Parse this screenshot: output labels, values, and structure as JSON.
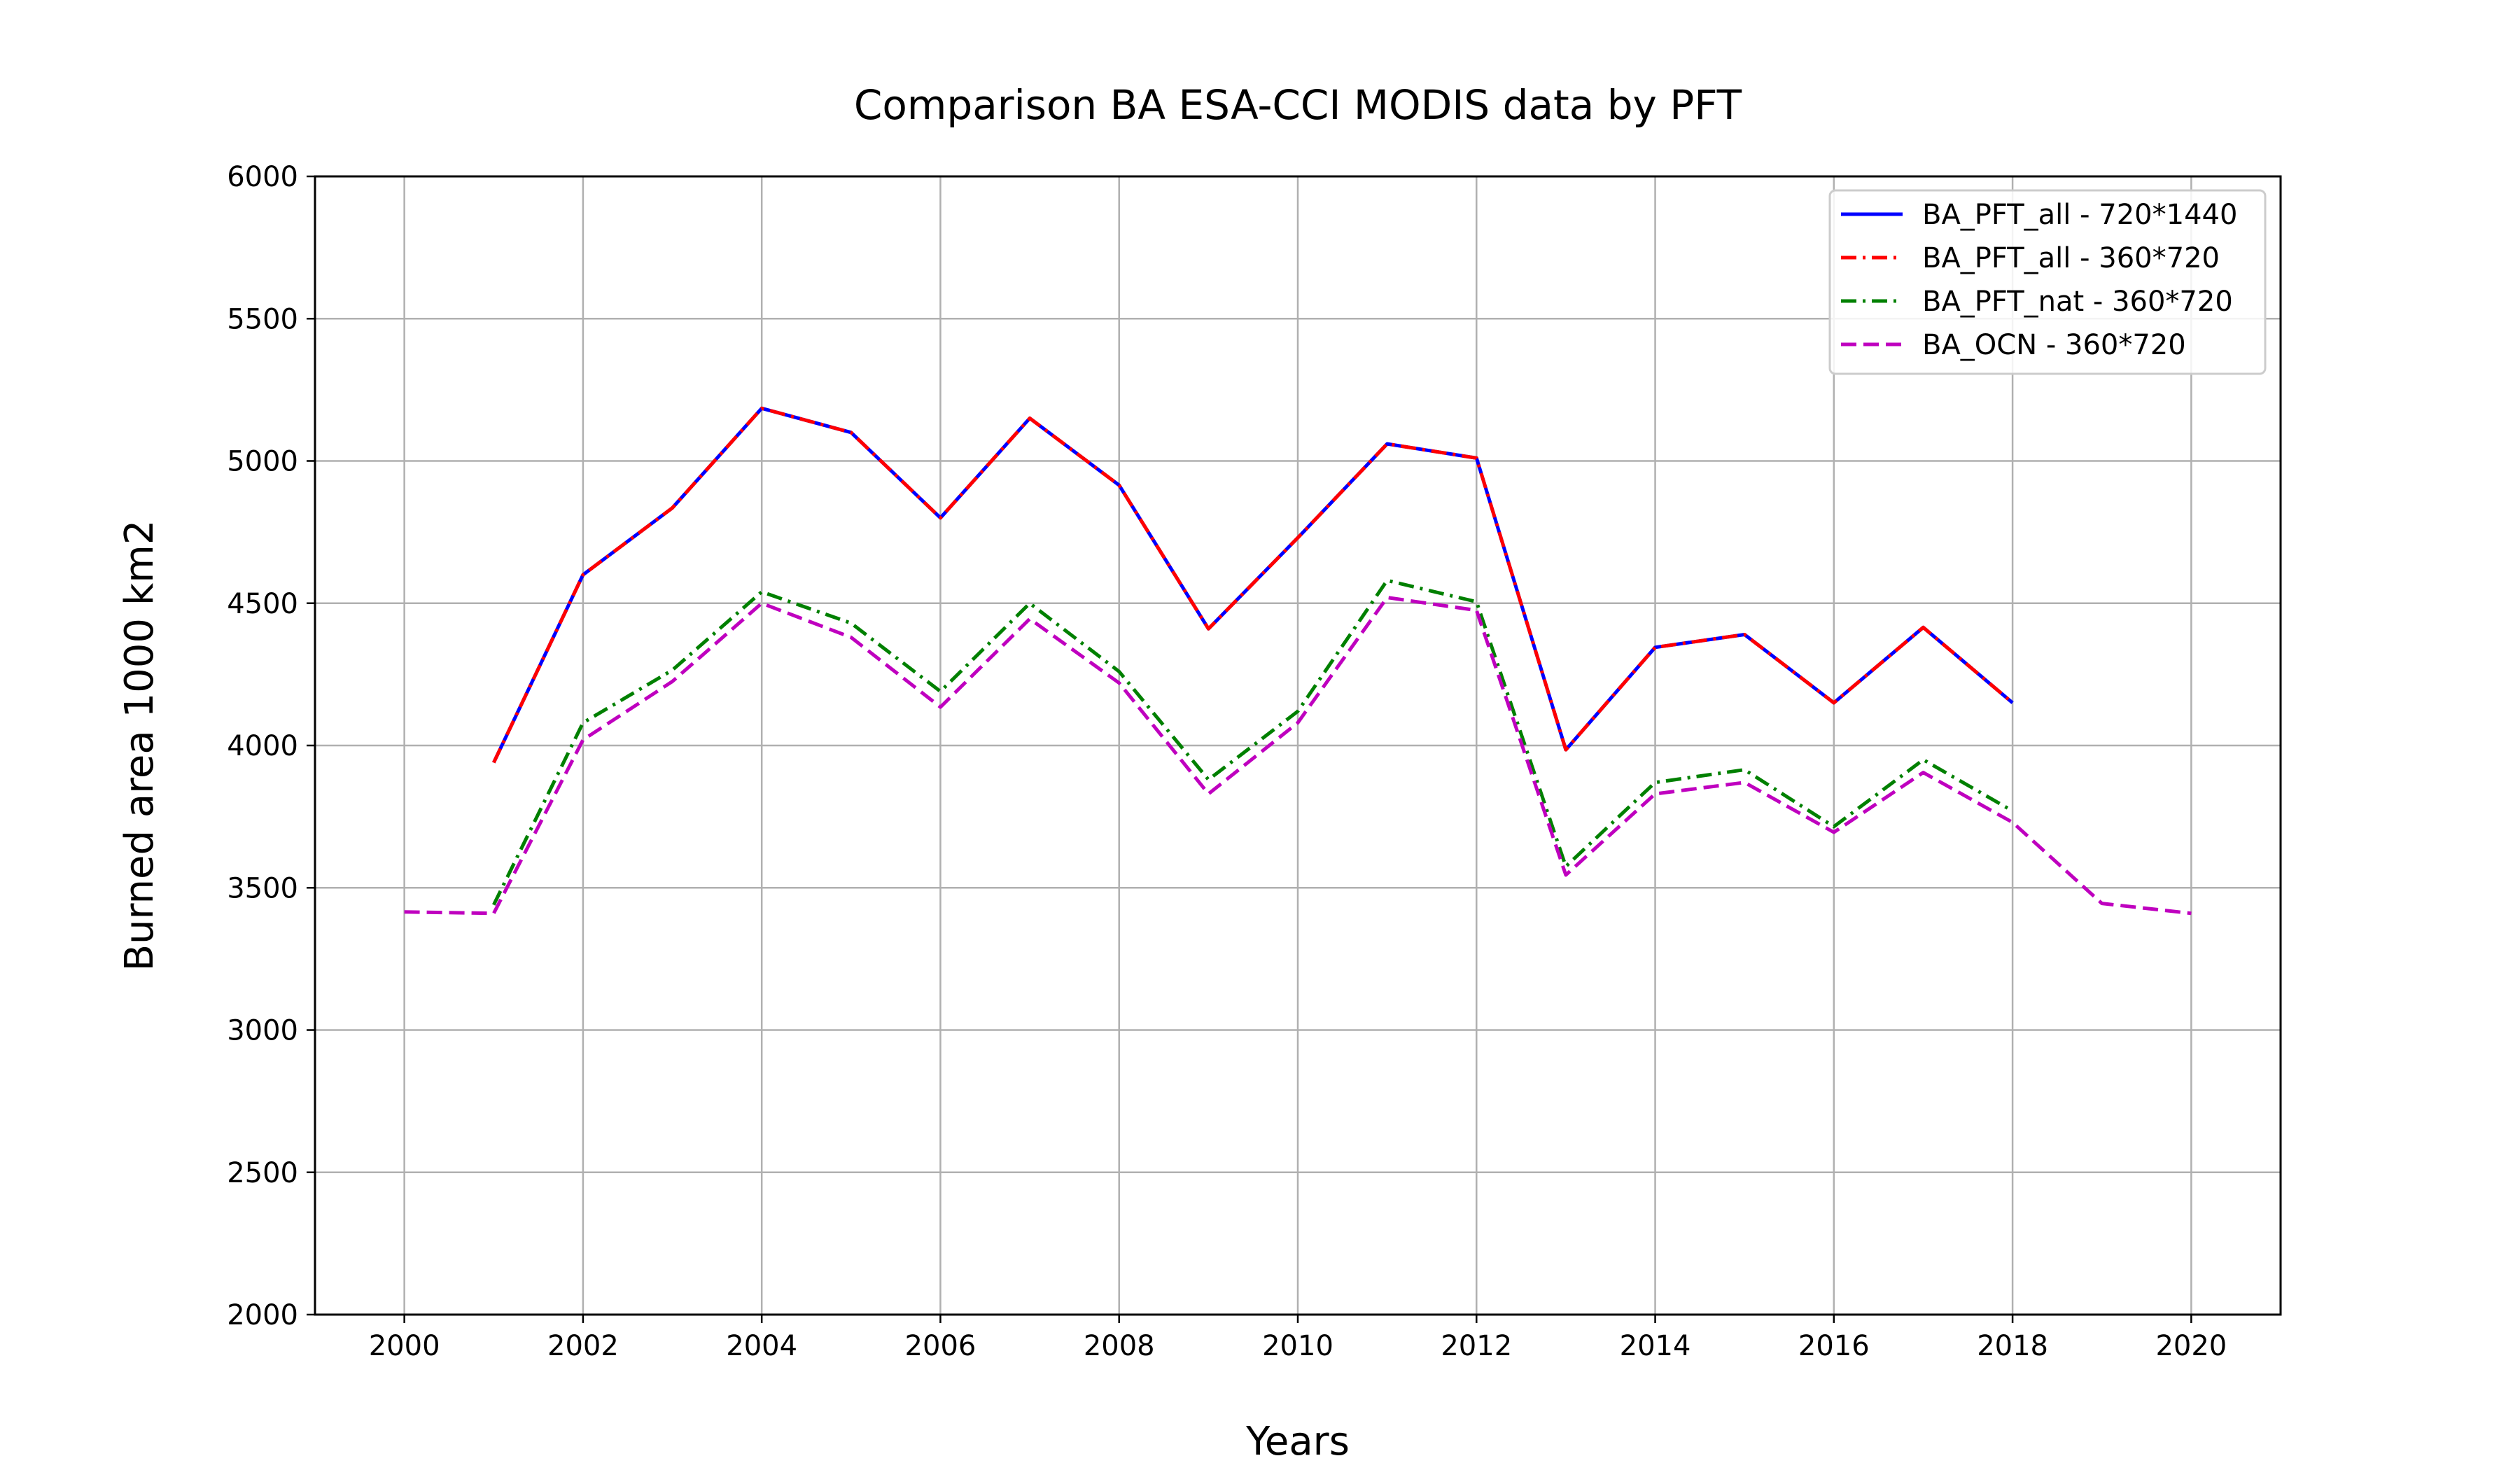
{
  "chart_data": {
    "type": "line",
    "title": "Comparison BA ESA-CCI MODIS data by PFT",
    "xlabel": "Years",
    "ylabel": "Burned area 1000 km2",
    "xlim": [
      1999,
      2021
    ],
    "ylim": [
      2000,
      6000
    ],
    "xticks": [
      2000,
      2002,
      2004,
      2006,
      2008,
      2010,
      2012,
      2014,
      2016,
      2018,
      2020
    ],
    "yticks": [
      2000,
      2500,
      3000,
      3500,
      4000,
      4500,
      5000,
      5500,
      6000
    ],
    "grid": true,
    "legend_position": "top-right",
    "series": [
      {
        "name": "BA_PFT_all - 720*1440",
        "color": "#0000ff",
        "style": "solid",
        "x": [
          2001,
          2002,
          2003,
          2004,
          2005,
          2006,
          2007,
          2008,
          2009,
          2010,
          2011,
          2012,
          2013,
          2014,
          2015,
          2016,
          2017,
          2018
        ],
        "values": [
          3940,
          4600,
          4835,
          5185,
          5100,
          4800,
          5150,
          4915,
          4410,
          4730,
          5060,
          5010,
          3985,
          4345,
          4390,
          4150,
          4415,
          4150
        ]
      },
      {
        "name": "BA_PFT_all - 360*720",
        "color": "#ff0000",
        "style": "dashdot",
        "x": [
          2001,
          2002,
          2003,
          2004,
          2005,
          2006,
          2007,
          2008,
          2009,
          2010,
          2011,
          2012,
          2013,
          2014,
          2015,
          2016,
          2017,
          2018
        ],
        "values": [
          3940,
          4600,
          4835,
          5185,
          5100,
          4800,
          5150,
          4915,
          4410,
          4730,
          5060,
          5010,
          3985,
          4345,
          4390,
          4150,
          4415,
          4150
        ]
      },
      {
        "name": "BA_PFT_nat - 360*720",
        "color": "#008000",
        "style": "dashdot",
        "x": [
          2001,
          2002,
          2003,
          2004,
          2005,
          2006,
          2007,
          2008,
          2009,
          2010,
          2011,
          2012,
          2013,
          2014,
          2015,
          2016,
          2017,
          2018
        ],
        "values": [
          3440,
          4080,
          4265,
          4540,
          4430,
          4190,
          4500,
          4260,
          3880,
          4120,
          4580,
          4505,
          3575,
          3870,
          3915,
          3715,
          3950,
          3770
        ]
      },
      {
        "name": "BA_OCN - 360*720",
        "color": "#bf00bf",
        "style": "dashed",
        "x": [
          2000,
          2001,
          2002,
          2003,
          2004,
          2005,
          2006,
          2007,
          2008,
          2009,
          2010,
          2011,
          2012,
          2013,
          2014,
          2015,
          2016,
          2017,
          2018,
          2019,
          2020
        ],
        "values": [
          3415,
          3410,
          4020,
          4225,
          4500,
          4380,
          4135,
          4445,
          4220,
          3830,
          4080,
          4520,
          4475,
          3545,
          3830,
          3870,
          3695,
          3905,
          3730,
          3445,
          3410
        ]
      }
    ]
  }
}
